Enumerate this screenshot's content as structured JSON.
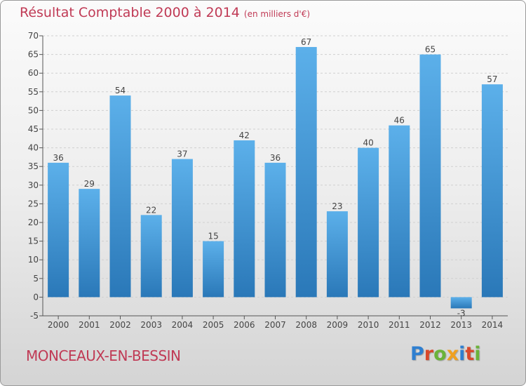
{
  "header": {
    "title": "Résultat Comptable 2000 à 2014",
    "subtitle": "(en milliers d'€)"
  },
  "commune": "MONCEAUX-EN-BESSIN",
  "logo": {
    "text": "Proxiti",
    "letter_colors": [
      "#2f7fd0",
      "#d9482b",
      "#6bb33a",
      "#f0a020",
      "#2f7fd0",
      "#d9482b",
      "#6bb33a"
    ]
  },
  "colors": {
    "bar_light": "#5cb0ea",
    "bar_dark": "#2a78b8",
    "text_accent": "#c03a55"
  },
  "chart_data": {
    "type": "bar",
    "categories": [
      "2000",
      "2001",
      "2002",
      "2003",
      "2004",
      "2005",
      "2006",
      "2007",
      "2008",
      "2009",
      "2010",
      "2011",
      "2012",
      "2013",
      "2014"
    ],
    "values": [
      36,
      29,
      54,
      22,
      37,
      15,
      42,
      36,
      67,
      23,
      40,
      46,
      65,
      -3,
      57
    ],
    "title": "Résultat Comptable 2000 à 2014",
    "ylim": [
      -5,
      70
    ],
    "yticks": [
      -5,
      0,
      5,
      10,
      15,
      20,
      25,
      30,
      35,
      40,
      45,
      50,
      55,
      60,
      65,
      70
    ],
    "grid": true,
    "data_labels": true
  }
}
